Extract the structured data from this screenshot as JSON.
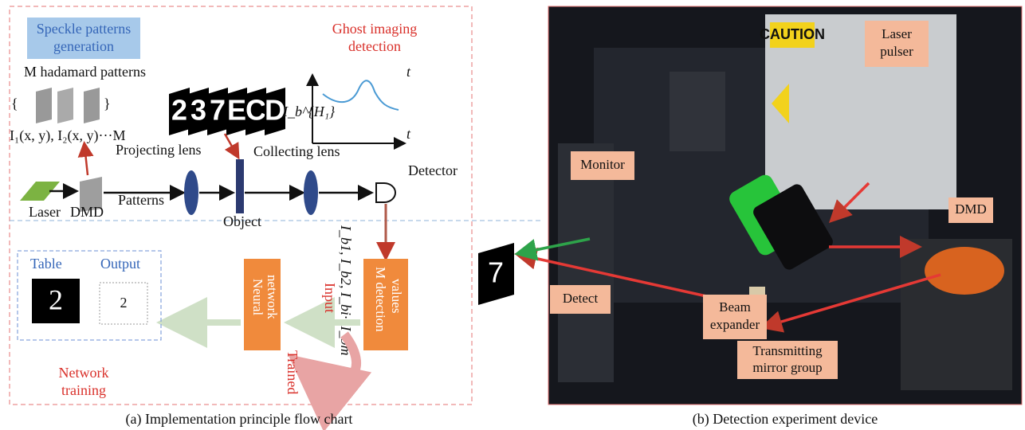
{
  "panel_a": {
    "speckle_label": [
      "Speckle patterns",
      "generation"
    ],
    "ghost_label": [
      "Ghost imaging",
      "detection"
    ],
    "hadamard": "M hadamard patterns",
    "patterns_formula": "I₁(x, y), I₂(x, y)···M",
    "digits": [
      "2",
      "3",
      "7",
      "E",
      "C",
      "D"
    ],
    "graph_t_top": "t",
    "graph_t_bottom": "t",
    "graph_ylabel": "I_b^{H₁}",
    "projecting_lens": "Projecting lens",
    "collecting_lens": "Collecting lens",
    "detector": "Detector",
    "laser": "Laser",
    "dmd": "DMD",
    "patterns": "Patterns",
    "object": "Object",
    "intensities": "I_b1, I_b2, I_bi···I_bm",
    "detection_values": [
      "M detection",
      "values"
    ],
    "neural_network": [
      "Neural",
      "network"
    ],
    "input": "Input",
    "trained": "Trained",
    "table": "Table",
    "output": "Output",
    "table_digit": "2",
    "output_digit": "2",
    "network_training": [
      "Network",
      "training"
    ],
    "caption": "(a) Implementation principle flow chart"
  },
  "panel_b": {
    "sample_digit": "7",
    "caution": "CAUTION",
    "laser_pulser": [
      "Laser",
      "pulser"
    ],
    "monitor": "Monitor",
    "dmd": "DMD",
    "beam_expander": [
      "Beam",
      "expander"
    ],
    "detect": "Detect",
    "transmitting": [
      "Transmitting",
      "mirror group"
    ],
    "caption": "(b) Detection experiment device"
  }
}
